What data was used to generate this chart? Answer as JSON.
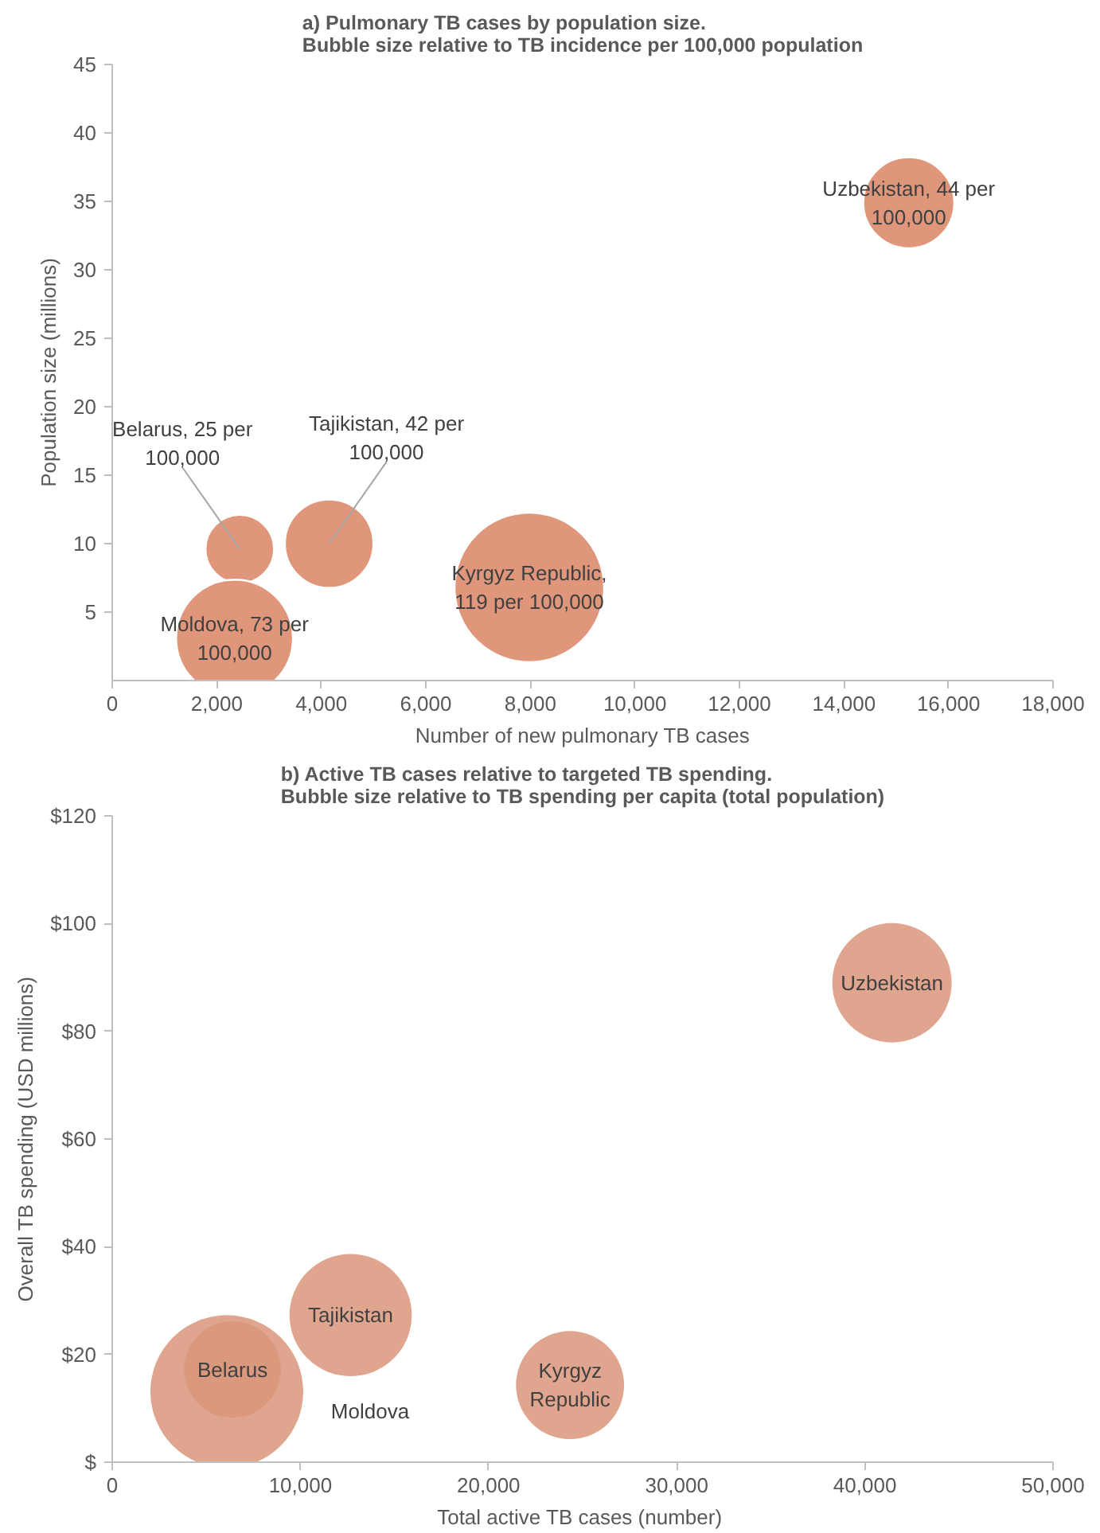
{
  "chart_data": [
    {
      "type": "bubble",
      "title": "a) Pulmonary TB cases by population size.",
      "subtitle": "Bubble size relative to TB incidence per 100,000 population",
      "xlabel": "Number of new pulmonary TB cases",
      "ylabel": "Population size (millions)",
      "xlim": [
        0,
        18000
      ],
      "ylim": [
        0,
        45
      ],
      "xticks": [
        0,
        {
          "value": 2000,
          "label": "2,000"
        },
        {
          "value": 4000,
          "label": "4,000"
        },
        {
          "value": 6000,
          "label": "6,000"
        },
        {
          "value": 8000,
          "label": "8,000"
        },
        {
          "value": 10000,
          "label": "10,000"
        },
        {
          "value": 12000,
          "label": "12,000"
        },
        {
          "value": 14000,
          "label": "14,000"
        },
        {
          "value": 16000,
          "label": "16,000"
        },
        {
          "value": 18000,
          "label": "18,000"
        }
      ],
      "yticks": [
        5,
        10,
        15,
        20,
        25,
        30,
        35,
        40,
        45
      ],
      "series": [
        {
          "color": "#e0967a",
          "x": [
            15240,
            7980,
            4150,
            2440,
            2340
          ],
          "values": [
            34.9,
            6.8,
            10.0,
            9.6,
            3.1
          ],
          "sizes": [
            0.37,
            1,
            0.35,
            0.21,
            0.61
          ],
          "value_labels": [
            "Uzbekistan, 44 per\n100,000",
            "Kyrgyz Republic,\n119 per 100,000",
            null,
            null,
            "Moldova, 73 per\n100,000"
          ]
        }
      ],
      "annotations": [
        {
          "text": "Belarus, 25 per\n100,000",
          "x": 2440,
          "y": 9.6
        },
        {
          "text": "Tajikistan, 42 per\n100,000",
          "x": 4150,
          "y": 10.0
        }
      ]
    },
    {
      "type": "bubble",
      "title": "b) Active TB cases relative to targeted TB spending.",
      "subtitle": "Bubble size relative to TB spending per capita (total population)",
      "xlabel": "Total active TB  cases (number)",
      "ylabel": "Overall TB spending (USD millions)",
      "xlim": [
        0,
        50000
      ],
      "ylim": [
        0,
        120
      ],
      "xticks": [
        0,
        {
          "value": 10000,
          "label": "10,000"
        },
        {
          "value": 20000,
          "label": "20,000"
        },
        {
          "value": 30000,
          "label": "30,000"
        },
        {
          "value": 40000,
          "label": "40,000"
        },
        {
          "value": 50000,
          "label": "50,000"
        }
      ],
      "yticks": [
        {
          "value": 0,
          "label": "$"
        },
        {
          "value": 20,
          "label": "$20"
        },
        {
          "value": 40,
          "label": "$40"
        },
        {
          "value": 60,
          "label": "$60"
        },
        {
          "value": 80,
          "label": "$80"
        },
        {
          "value": 100,
          "label": "$100"
        },
        {
          "value": 120,
          "label": "$120"
        }
      ],
      "series": [
        {
          "color": "#d9957a",
          "x": [
            41440,
            12670,
            24330,
            6090,
            6390
          ],
          "values": [
            89.0,
            27.3,
            14.3,
            13.1,
            17.2
          ],
          "sizes": [
            0.61,
            0.64,
            0.5,
            1,
            0.4
          ],
          "value_labels": [
            "Uzbekistan",
            "Tajikistan",
            "Kyrgyz\nRepublic",
            null,
            "Belarus"
          ]
        }
      ],
      "annotations": [
        "Moldova"
      ]
    }
  ]
}
